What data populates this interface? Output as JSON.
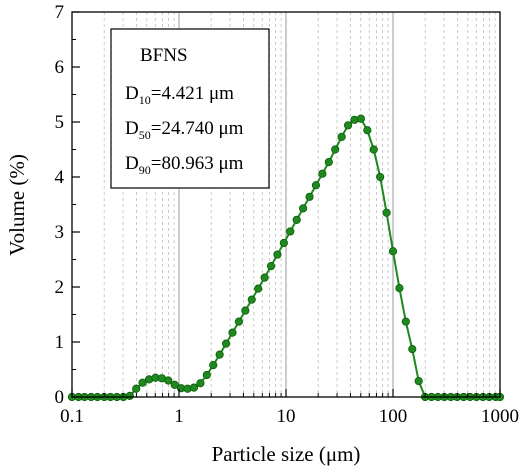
{
  "chart_data": {
    "type": "line",
    "xlabel": "Particle size (μm)",
    "ylabel": "Volume (%)",
    "xscale": "log",
    "xlim": [
      0.1,
      1000
    ],
    "ylim": [
      0,
      7
    ],
    "xticks": [
      0.1,
      1,
      10,
      100,
      1000
    ],
    "xtick_labels": [
      "0.1",
      "1",
      "10",
      "100",
      "1000"
    ],
    "yticks": [
      0,
      1,
      2,
      3,
      4,
      5,
      6,
      7
    ],
    "ytick_labels": [
      "0",
      "1",
      "2",
      "3",
      "4",
      "5",
      "6",
      "7"
    ],
    "grid": "vertical major solid, minor dashed",
    "legend_position": "top-left",
    "colors": {
      "series": "#1e8a1e",
      "marker_edge": "#0d5a0d",
      "grid_major": "#9a9a9a",
      "grid_minor": "#bdbdbd"
    },
    "annotation": {
      "title": "BFNS",
      "lines": [
        {
          "main": "D",
          "sub": "10",
          "rest": "=4.421 μm"
        },
        {
          "main": "D",
          "sub": "50",
          "rest": "=24.740 μm"
        },
        {
          "main": "D",
          "sub": "90",
          "rest": "=80.963 μm"
        }
      ]
    },
    "series": [
      {
        "x": [
          0.1,
          0.115,
          0.131,
          0.151,
          0.173,
          0.2,
          0.229,
          0.263,
          0.302,
          0.347,
          0.398,
          0.457,
          0.525,
          0.603,
          0.692,
          0.794,
          0.912,
          1.047,
          1.202,
          1.38,
          1.585,
          1.82,
          2.089,
          2.399,
          2.754,
          3.162,
          3.631,
          4.169,
          4.786,
          5.495,
          6.31,
          7.244,
          8.318,
          9.55,
          10.96,
          12.59,
          14.45,
          16.6,
          19.05,
          21.88,
          25.12,
          28.84,
          33.11,
          38.02,
          43.65,
          50.12,
          57.54,
          66.07,
          75.86,
          87.1,
          100,
          114.8,
          131.8,
          151.4,
          173.8,
          199.5,
          229.1,
          263,
          302,
          346.7,
          398.1,
          457.1,
          524.8,
          602.6,
          691.8,
          794.3,
          912,
          1000
        ],
        "y": [
          0,
          0,
          0,
          0,
          0,
          0,
          0,
          0,
          0,
          0.02,
          0.15,
          0.26,
          0.32,
          0.35,
          0.34,
          0.3,
          0.22,
          0.16,
          0.15,
          0.17,
          0.25,
          0.4,
          0.58,
          0.77,
          0.97,
          1.17,
          1.37,
          1.57,
          1.77,
          1.97,
          2.17,
          2.38,
          2.59,
          2.8,
          3.01,
          3.22,
          3.43,
          3.64,
          3.85,
          4.06,
          4.27,
          4.5,
          4.73,
          4.94,
          5.04,
          5.06,
          4.85,
          4.5,
          4.0,
          3.35,
          2.65,
          1.98,
          1.37,
          0.87,
          0.29,
          0,
          0,
          0,
          0,
          0,
          0,
          0,
          0,
          0,
          0,
          0,
          0,
          0
        ]
      }
    ]
  }
}
